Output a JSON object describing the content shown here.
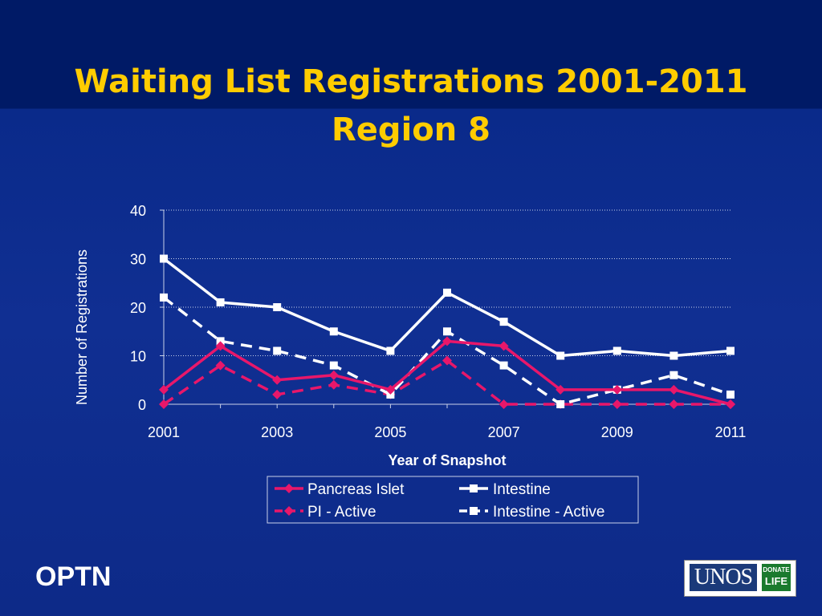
{
  "title": {
    "line1": "Waiting List Registrations 2001-2011",
    "line2": "Region 8"
  },
  "chart_data": {
    "type": "line",
    "x": [
      2001,
      2002,
      2003,
      2004,
      2005,
      2006,
      2007,
      2008,
      2009,
      2010,
      2011
    ],
    "xticks": [
      2001,
      2003,
      2005,
      2007,
      2009,
      2011
    ],
    "yticks": [
      0,
      10,
      20,
      30,
      40
    ],
    "xlim": [
      2001,
      2011
    ],
    "ylim": [
      0,
      40
    ],
    "xlabel": "Year of Snapshot",
    "ylabel": "Number of Registrations",
    "grid": "horizontal-dotted",
    "legend_position": "bottom",
    "series": [
      {
        "name": "Pancreas Islet",
        "color": "#e8176a",
        "dash": false,
        "marker": "diamond",
        "values": [
          3,
          12,
          5,
          6,
          3,
          13,
          12,
          3,
          3,
          3,
          0
        ]
      },
      {
        "name": "Intestine",
        "color": "#ffffff",
        "dash": false,
        "marker": "square",
        "values": [
          30,
          21,
          20,
          15,
          11,
          23,
          17,
          10,
          11,
          10,
          11
        ]
      },
      {
        "name": "PI - Active",
        "color": "#e8176a",
        "dash": true,
        "marker": "diamond",
        "values": [
          0,
          8,
          2,
          4,
          2,
          9,
          0,
          0,
          0,
          0,
          0
        ]
      },
      {
        "name": "Intestine - Active",
        "color": "#ffffff",
        "dash": true,
        "marker": "square",
        "values": [
          22,
          13,
          11,
          8,
          2,
          15,
          8,
          0,
          3,
          6,
          2
        ]
      }
    ]
  },
  "footer": {
    "optn": "OPTN",
    "unos": "UNOS",
    "donate": "DONATE",
    "life": "LIFE"
  }
}
